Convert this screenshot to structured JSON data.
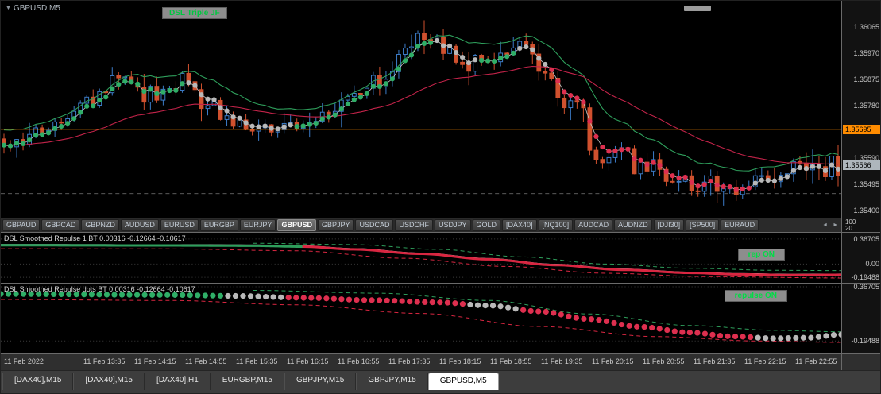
{
  "window": {
    "symbol_period": "GBPUSD,M5",
    "indicator_overlay_label": "DSL Triple JF"
  },
  "main_chart": {
    "scale_max": 1.3616,
    "scale_min": 1.35375,
    "bar_count": 132,
    "volatility": 0.00045,
    "axis_labels": [
      "1.36065",
      "1.35970",
      "1.35875",
      "1.35780",
      "1.35590",
      "1.35495",
      "1.35400"
    ],
    "price_line": {
      "value": "1.35695",
      "color": "#FF8C00"
    },
    "bid_badge": {
      "value": "1.35566",
      "color": "#AEB6BC"
    },
    "dashed_level": 1.35462,
    "up_color": "#3C7CC8",
    "down_color": "#D0512E",
    "dot_green": "#2FAE67",
    "dot_gray": "#B9B9B9",
    "dot_red": "#DE2F4F",
    "green_line": "#2E9E5B",
    "red_line": "#C22349",
    "mid_line": "#C9C9C9",
    "band_offset": 0.00055,
    "price_path": [
      [
        0,
        1.3566
      ],
      [
        0.02,
        1.35638
      ],
      [
        0.05,
        1.357
      ],
      [
        0.1,
        1.35802
      ],
      [
        0.13,
        1.35856
      ],
      [
        0.155,
        1.35872
      ],
      [
        0.175,
        1.35806
      ],
      [
        0.2,
        1.35862
      ],
      [
        0.215,
        1.35888
      ],
      [
        0.24,
        1.35798
      ],
      [
        0.27,
        1.35728
      ],
      [
        0.3,
        1.3569
      ],
      [
        0.34,
        1.35702
      ],
      [
        0.37,
        1.35722
      ],
      [
        0.4,
        1.3578
      ],
      [
        0.43,
        1.35842
      ],
      [
        0.46,
        1.35902
      ],
      [
        0.485,
        1.36002
      ],
      [
        0.5,
        1.36022
      ],
      [
        0.52,
        1.35988
      ],
      [
        0.55,
        1.3595
      ],
      [
        0.58,
        1.35962
      ],
      [
        0.6,
        1.3598
      ],
      [
        0.625,
        1.3599
      ],
      [
        0.645,
        1.35948
      ],
      [
        0.654,
        1.359
      ],
      [
        0.673,
        1.35772
      ],
      [
        0.687,
        1.35812
      ],
      [
        0.706,
        1.35602
      ],
      [
        0.725,
        1.35592
      ],
      [
        0.745,
        1.35622
      ],
      [
        0.758,
        1.35542
      ],
      [
        0.777,
        1.35562
      ],
      [
        0.796,
        1.35512
      ],
      [
        0.815,
        1.35522
      ],
      [
        0.834,
        1.35492
      ],
      [
        0.853,
        1.35512
      ],
      [
        0.872,
        1.35482
      ],
      [
        0.891,
        1.35472
      ],
      [
        0.91,
        1.35512
      ],
      [
        0.929,
        1.35532
      ],
      [
        0.948,
        1.35562
      ],
      [
        0.962,
        1.35572
      ],
      [
        0.981,
        1.3556
      ],
      [
        1,
        1.35566
      ]
    ],
    "dot_segments": [
      {
        "to": 0.22,
        "color": "green"
      },
      {
        "to": 0.35,
        "color": "gray"
      },
      {
        "to": 0.515,
        "color": "green"
      },
      {
        "to": 0.565,
        "color": "gray"
      },
      {
        "to": 0.615,
        "color": "green"
      },
      {
        "to": 0.65,
        "color": "gray"
      },
      {
        "to": 0.9,
        "color": "red"
      },
      {
        "to": 1.01,
        "color": "gray"
      }
    ]
  },
  "symbol_strip": {
    "tabs": [
      "GBPAUD",
      "GBPCAD",
      "GBPNZD",
      "AUDUSD",
      "EURUSD",
      "EURGBP",
      "EURJPY",
      "GBPUSD",
      "GBPJPY",
      "USDCAD",
      "USDCHF",
      "USDJPY",
      "GOLD",
      "[DAX40]",
      "[NQ100]",
      "AUDCAD",
      "AUDNZD",
      "[DJI30]",
      "[SP500]",
      "EURAUD"
    ],
    "active": "GBPUSD",
    "axis_values": [
      "100",
      "20"
    ]
  },
  "indicator1": {
    "title": "DSL Smoothed Repulse 1 BT 0.00316 -0.12664 -0.10617",
    "button_label": "rep ON",
    "axis_labels": [
      "0.36705",
      "0.00",
      "-0.19488"
    ],
    "scale_max": 0.459,
    "scale_min": -0.275,
    "green": "#2E9E5B",
    "red": "#D92641",
    "switch_t": 0.36,
    "main_path": [
      [
        0,
        0.275
      ],
      [
        0.22,
        0.272
      ],
      [
        0.3,
        0.268
      ],
      [
        0.36,
        0.255
      ],
      [
        0.42,
        0.215
      ],
      [
        0.5,
        0.15
      ],
      [
        0.58,
        0.07
      ],
      [
        0.66,
        -0.015
      ],
      [
        0.74,
        -0.085
      ],
      [
        0.82,
        -0.13
      ],
      [
        0.88,
        -0.152
      ],
      [
        0.94,
        -0.162
      ],
      [
        1,
        -0.158
      ]
    ],
    "upper_dashed": [
      [
        0.3,
        0.305
      ],
      [
        0.42,
        0.285
      ],
      [
        0.52,
        0.215
      ],
      [
        0.62,
        0.105
      ],
      [
        0.72,
        0.0
      ],
      [
        0.82,
        -0.062
      ],
      [
        0.92,
        -0.092
      ],
      [
        1,
        -0.096
      ]
    ],
    "lower_dashed": [
      [
        0,
        0.225
      ],
      [
        0.2,
        0.222
      ],
      [
        0.35,
        0.195
      ],
      [
        0.48,
        0.085
      ],
      [
        0.6,
        -0.035
      ],
      [
        0.72,
        -0.135
      ],
      [
        0.84,
        -0.185
      ],
      [
        1,
        -0.205
      ]
    ]
  },
  "indicator2": {
    "title": "DSL Smoothed Repulse dots BT 0.00316 -0.12664 -0.10617",
    "button_label": "repulse ON",
    "axis_labels": [
      "0.36705",
      "-0.19488"
    ],
    "scale_max": 0.4,
    "scale_min": -0.325,
    "green": "#2E9E5B",
    "red": "#D92641",
    "dot_count": 112,
    "dots_path": [
      [
        0,
        0.292
      ],
      [
        0.2,
        0.282
      ],
      [
        0.28,
        0.272
      ],
      [
        0.36,
        0.252
      ],
      [
        0.44,
        0.228
      ],
      [
        0.52,
        0.205
      ],
      [
        0.58,
        0.172
      ],
      [
        0.64,
        0.112
      ],
      [
        0.7,
        0.032
      ],
      [
        0.76,
        -0.048
      ],
      [
        0.82,
        -0.108
      ],
      [
        0.87,
        -0.148
      ],
      [
        0.92,
        -0.168
      ],
      [
        0.96,
        -0.162
      ],
      [
        1,
        -0.128
      ]
    ],
    "dot_segments": [
      {
        "to": 0.27,
        "color": "green"
      },
      {
        "to": 0.34,
        "color": "gray"
      },
      {
        "to": 0.55,
        "color": "red"
      },
      {
        "to": 0.62,
        "color": "gray"
      },
      {
        "to": 0.9,
        "color": "red"
      },
      {
        "to": 1.01,
        "color": "gray"
      }
    ],
    "upper_dashed": [
      [
        0.3,
        0.33
      ],
      [
        0.45,
        0.3
      ],
      [
        0.58,
        0.225
      ],
      [
        0.7,
        0.085
      ],
      [
        0.82,
        -0.035
      ],
      [
        0.92,
        -0.085
      ],
      [
        1,
        -0.1
      ]
    ],
    "lower_dashed": [
      [
        0,
        0.235
      ],
      [
        0.2,
        0.225
      ],
      [
        0.35,
        0.18
      ],
      [
        0.5,
        0.09
      ],
      [
        0.64,
        -0.045
      ],
      [
        0.78,
        -0.15
      ],
      [
        0.9,
        -0.195
      ],
      [
        1,
        -0.21
      ]
    ]
  },
  "time_axis": {
    "labels": [
      "11 Feb 2022",
      "11 Feb 13:35",
      "11 Feb 14:15",
      "11 Feb 14:55",
      "11 Feb 15:35",
      "11 Feb 16:15",
      "11 Feb 16:55",
      "11 Feb 17:35",
      "11 Feb 18:15",
      "11 Feb 18:55",
      "11 Feb 19:35",
      "11 Feb 20:15",
      "11 Feb 20:55",
      "11 Feb 21:35",
      "11 Feb 22:15",
      "11 Feb 22:55"
    ]
  },
  "bottom_tabs": {
    "items": [
      "[DAX40],M15",
      "[DAX40],M15",
      "[DAX40],H1",
      "EURGBP,M15",
      "GBPJPY,M15",
      "GBPJPY,M15",
      "GBPUSD,M5"
    ],
    "active_index": 6
  }
}
